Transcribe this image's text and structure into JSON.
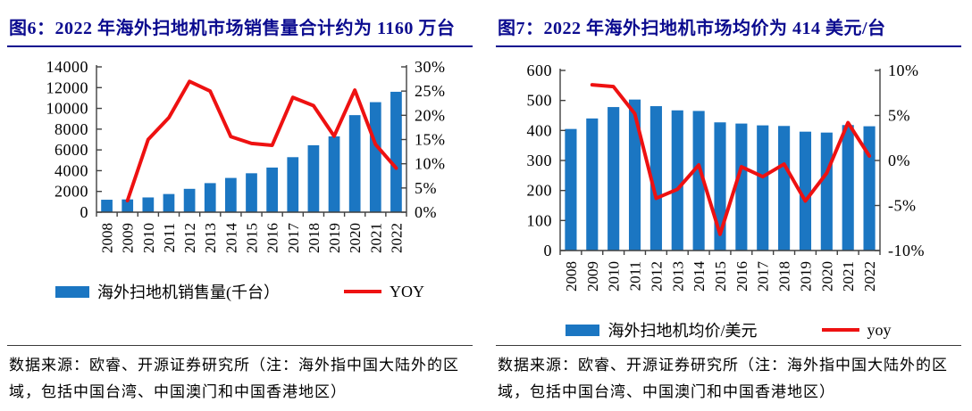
{
  "figures": [
    {
      "title": "图6：2022 年海外扫地机市场销售量合计约为 1160 万台",
      "legend": {
        "bar_label": "海外扫地机销售量(千台）",
        "line_label": "YOY"
      },
      "source": {
        "line1": "数据来源：欧睿、开源证券研究所（注：海外指中国大陆外的区",
        "line2": "域，包括中国台湾、中国澳门和中国香港地区）"
      }
    },
    {
      "title": "图7：2022 年海外扫地机市场均价为 414 美元/台",
      "legend": {
        "bar_label": "海外扫地机均价/美元",
        "line_label": "yoy"
      },
      "source": {
        "line1": "数据来源：欧睿、开源证券研究所（注：海外指中国大陆外的区",
        "line2": "域，包括中国台湾、中国澳门和中国香港地区）"
      }
    }
  ],
  "chart_data": [
    {
      "type": "bar+line",
      "title": "2022 年海外扫地机市场销售量合计约为 1160 万台",
      "categories": [
        "2008",
        "2009",
        "2010",
        "2011",
        "2012",
        "2013",
        "2014",
        "2015",
        "2016",
        "2017",
        "2018",
        "2019",
        "2020",
        "2021",
        "2022"
      ],
      "series": [
        {
          "name": "海外扫地机销售量(千台）",
          "type": "bar",
          "axis": "left",
          "values": [
            1200,
            1230,
            1420,
            1750,
            2250,
            2800,
            3300,
            3750,
            4300,
            5300,
            6450,
            7300,
            9350,
            10600,
            11600
          ]
        },
        {
          "name": "YOY",
          "type": "line",
          "axis": "right",
          "unit": "%",
          "values": [
            null,
            2.4,
            15.0,
            19.5,
            27.0,
            25.0,
            15.6,
            14.2,
            13.8,
            23.7,
            22.0,
            15.7,
            25.2,
            14.0,
            9.1
          ]
        }
      ],
      "y_left": {
        "min": 0,
        "max": 14000,
        "step": 2000,
        "suffix": ""
      },
      "y_right": {
        "min": 0,
        "max": 30,
        "step": 5,
        "suffix": "%"
      },
      "grid": false,
      "legend_position": "bottom"
    },
    {
      "type": "bar+line",
      "title": "2022 年海外扫地机市场均价为 414 美元/台",
      "categories": [
        "2008",
        "2009",
        "2010",
        "2011",
        "2012",
        "2013",
        "2014",
        "2015",
        "2016",
        "2017",
        "2018",
        "2019",
        "2020",
        "2021",
        "2022"
      ],
      "series": [
        {
          "name": "海外扫地机均价/美元",
          "type": "bar",
          "axis": "left",
          "values": [
            405,
            440,
            478,
            503,
            481,
            467,
            465,
            427,
            423,
            417,
            415,
            396,
            393,
            418,
            414
          ]
        },
        {
          "name": "yoy",
          "type": "line",
          "axis": "right",
          "unit": "%",
          "values": [
            null,
            8.4,
            8.2,
            5.2,
            -4.2,
            -3.2,
            -0.5,
            -8.2,
            -0.7,
            -1.8,
            -0.4,
            -4.5,
            -1.4,
            4.2,
            0.5
          ]
        }
      ],
      "y_left": {
        "min": 0,
        "max": 600,
        "step": 100,
        "suffix": ""
      },
      "y_right": {
        "min": -10,
        "max": 10,
        "step": 5,
        "suffix": "%"
      },
      "grid": false,
      "legend_position": "bottom"
    }
  ],
  "colors": {
    "title_navy": "#0B0B8F",
    "bar_blue": "#1B76C2",
    "line_red": "#EE1111",
    "axis_gray": "#404040"
  }
}
